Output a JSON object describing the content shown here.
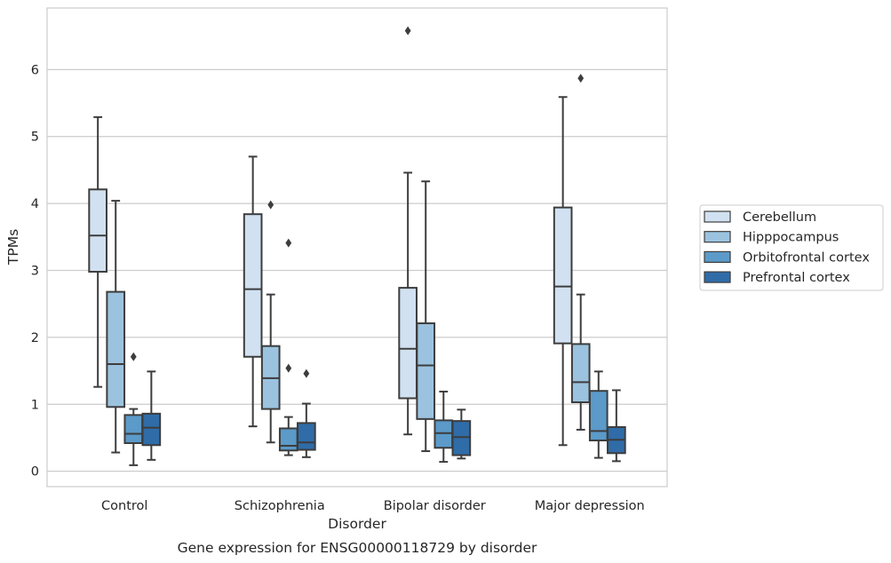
{
  "chart_data": {
    "type": "box",
    "caption": "Gene expression for ENSG00000118729 by disorder",
    "xlabel": "Disorder",
    "ylabel": "TPMs",
    "ylim": [
      -0.23,
      6.92
    ],
    "yticks": [
      "0",
      "1",
      "2",
      "3",
      "4",
      "5",
      "6"
    ],
    "grid": "horizontal",
    "legend_position": "right",
    "categories": [
      "Control",
      "Schizophrenia",
      "Bipolar disorder",
      "Major depression"
    ],
    "series": [
      {
        "name": "Cerebellum",
        "color": "#d1e1f1",
        "boxes": [
          {
            "whisker_low": 1.26,
            "q1": 2.98,
            "median": 3.52,
            "q3": 4.21,
            "whisker_high": 5.29,
            "outliers": []
          },
          {
            "whisker_low": 0.67,
            "q1": 1.71,
            "median": 2.72,
            "q3": 3.84,
            "whisker_high": 4.7,
            "outliers": []
          },
          {
            "whisker_low": 0.55,
            "q1": 1.09,
            "median": 1.83,
            "q3": 2.74,
            "whisker_high": 4.46,
            "outliers": [
              6.58
            ]
          },
          {
            "whisker_low": 0.39,
            "q1": 1.91,
            "median": 2.76,
            "q3": 3.94,
            "whisker_high": 5.59,
            "outliers": []
          }
        ]
      },
      {
        "name": "Hipppocampus",
        "color": "#9bc3df",
        "boxes": [
          {
            "whisker_low": 0.28,
            "q1": 0.96,
            "median": 1.6,
            "q3": 2.68,
            "whisker_high": 4.04,
            "outliers": []
          },
          {
            "whisker_low": 0.43,
            "q1": 0.93,
            "median": 1.39,
            "q3": 1.87,
            "whisker_high": 2.64,
            "outliers": [
              3.98
            ]
          },
          {
            "whisker_low": 0.3,
            "q1": 0.78,
            "median": 1.58,
            "q3": 2.21,
            "whisker_high": 4.33,
            "outliers": []
          },
          {
            "whisker_low": 0.62,
            "q1": 1.03,
            "median": 1.33,
            "q3": 1.9,
            "whisker_high": 2.64,
            "outliers": [
              5.87
            ]
          }
        ]
      },
      {
        "name": "Orbitofrontal cortex",
        "color": "#5b9ac9",
        "boxes": [
          {
            "whisker_low": 0.09,
            "q1": 0.42,
            "median": 0.56,
            "q3": 0.84,
            "whisker_high": 0.93,
            "outliers": [
              1.71
            ]
          },
          {
            "whisker_low": 0.24,
            "q1": 0.31,
            "median": 0.38,
            "q3": 0.64,
            "whisker_high": 0.81,
            "outliers": [
              3.41,
              1.54
            ]
          },
          {
            "whisker_low": 0.14,
            "q1": 0.35,
            "median": 0.57,
            "q3": 0.76,
            "whisker_high": 1.19,
            "outliers": []
          },
          {
            "whisker_low": 0.2,
            "q1": 0.46,
            "median": 0.6,
            "q3": 1.2,
            "whisker_high": 1.49,
            "outliers": []
          }
        ]
      },
      {
        "name": "Prefrontal cortex",
        "color": "#2f6ca8",
        "boxes": [
          {
            "whisker_low": 0.17,
            "q1": 0.39,
            "median": 0.65,
            "q3": 0.86,
            "whisker_high": 1.49,
            "outliers": []
          },
          {
            "whisker_low": 0.21,
            "q1": 0.32,
            "median": 0.43,
            "q3": 0.72,
            "whisker_high": 1.01,
            "outliers": [
              1.46
            ]
          },
          {
            "whisker_low": 0.19,
            "q1": 0.24,
            "median": 0.51,
            "q3": 0.75,
            "whisker_high": 0.92,
            "outliers": []
          },
          {
            "whisker_low": 0.15,
            "q1": 0.27,
            "median": 0.47,
            "q3": 0.66,
            "whisker_high": 1.21,
            "outliers": []
          }
        ]
      }
    ]
  }
}
